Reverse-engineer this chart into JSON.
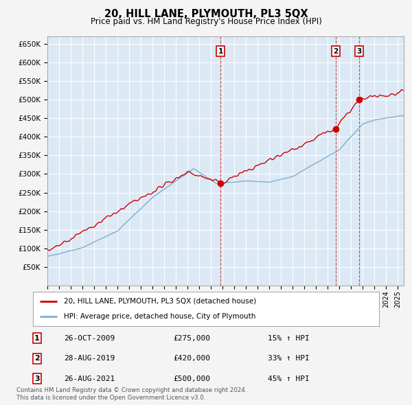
{
  "title": "20, HILL LANE, PLYMOUTH, PL3 5QX",
  "subtitle": "Price paid vs. HM Land Registry's House Price Index (HPI)",
  "ylim": [
    0,
    670000
  ],
  "yticks": [
    50000,
    100000,
    150000,
    200000,
    250000,
    300000,
    350000,
    400000,
    450000,
    500000,
    550000,
    600000,
    650000
  ],
  "bg_color": "#dce9f5",
  "grid_color": "#ffffff",
  "sale_color": "#cc0000",
  "hpi_color": "#7bafd4",
  "sale_label": "20, HILL LANE, PLYMOUTH, PL3 5QX (detached house)",
  "hpi_label": "HPI: Average price, detached house, City of Plymouth",
  "transactions": [
    {
      "num": 1,
      "date": "26-OCT-2009",
      "price": 275000,
      "pct": "15%",
      "x_year": 2009.82
    },
    {
      "num": 2,
      "date": "28-AUG-2019",
      "price": 420000,
      "pct": "33%",
      "x_year": 2019.66
    },
    {
      "num": 3,
      "date": "26-AUG-2021",
      "price": 500000,
      "pct": "45%",
      "x_year": 2021.66
    }
  ],
  "footnote1": "Contains HM Land Registry data © Crown copyright and database right 2024.",
  "footnote2": "This data is licensed under the Open Government Licence v3.0.",
  "xmin": 1995.0,
  "xmax": 2025.5,
  "fig_bg": "#f4f4f4"
}
